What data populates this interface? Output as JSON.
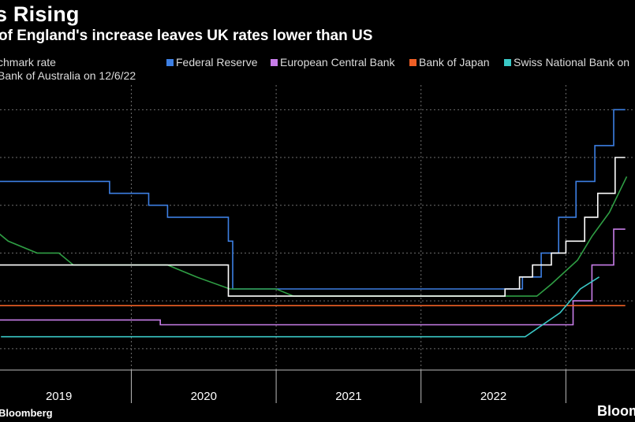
{
  "title": "s Rising",
  "subtitle": "of England's increase leaves UK rates lower than US",
  "legend": {
    "row1": [
      {
        "label": "chmark rate",
        "color": "#ffffff",
        "swatch": false
      },
      {
        "label": "Federal Reserve",
        "color": "#3d7fe3",
        "swatch": true
      },
      {
        "label": "European Central Bank",
        "color": "#c77de8",
        "swatch": true
      },
      {
        "label": "Bank of Japan",
        "color": "#ef5f25",
        "swatch": true
      },
      {
        "label": "Swiss National Bank on",
        "color": "#3ac8c6",
        "swatch": true
      }
    ],
    "row2": [
      {
        "label": "Bank of Australia on 12/6/22",
        "color": "#2f9e44",
        "swatch": false
      }
    ]
  },
  "source": "Bloomberg",
  "brand": "Bloom",
  "chart_data": {
    "type": "line",
    "x_unit": "year",
    "xlim": [
      2018.55,
      2022.95
    ],
    "ylim": [
      -1.25,
      4.5
    ],
    "grid": {
      "horizontal": true,
      "vertical": true
    },
    "x_ticks": [
      {
        "label": "2019",
        "at": 2019.0
      },
      {
        "label": "2020",
        "at": 2020.0
      },
      {
        "label": "2021",
        "at": 2021.0
      },
      {
        "label": "2022",
        "at": 2022.0
      }
    ],
    "y_gridlines": [
      -1,
      0,
      1,
      2,
      3,
      4
    ],
    "series": [
      {
        "name": "Federal Reserve",
        "color": "#3d7fe3",
        "step": true,
        "points": [
          [
            2018.55,
            2.5
          ],
          [
            2019.35,
            2.25
          ],
          [
            2019.62,
            2.0
          ],
          [
            2019.75,
            1.75
          ],
          [
            2020.17,
            1.25
          ],
          [
            2020.2,
            0.25
          ],
          [
            2021.0,
            0.25
          ],
          [
            2021.95,
            0.25
          ],
          [
            2022.2,
            0.5
          ],
          [
            2022.33,
            1.0
          ],
          [
            2022.45,
            1.75
          ],
          [
            2022.57,
            2.5
          ],
          [
            2022.7,
            3.25
          ],
          [
            2022.83,
            4.0
          ],
          [
            2022.91,
            4.0
          ]
        ]
      },
      {
        "name": "European Central Bank",
        "color": "#c77de8",
        "step": true,
        "points": [
          [
            2018.55,
            -0.4
          ],
          [
            2019.7,
            -0.5
          ],
          [
            2022.05,
            -0.5
          ],
          [
            2022.55,
            0.0
          ],
          [
            2022.68,
            0.75
          ],
          [
            2022.83,
            1.5
          ],
          [
            2022.91,
            1.5
          ]
        ]
      },
      {
        "name": "Bank of Japan",
        "color": "#ef5f25",
        "step": true,
        "points": [
          [
            2018.55,
            -0.1
          ],
          [
            2022.91,
            -0.1
          ]
        ]
      },
      {
        "name": "Swiss National Bank",
        "color": "#3ac8c6",
        "step": false,
        "points": [
          [
            2018.6,
            -0.75
          ],
          [
            2022.22,
            -0.75
          ],
          [
            2022.46,
            -0.25
          ],
          [
            2022.6,
            0.25
          ],
          [
            2022.73,
            0.5
          ]
        ]
      },
      {
        "name": "Reserve Bank of Australia",
        "color": "#2f9e44",
        "step": false,
        "points": [
          [
            2018.55,
            1.5
          ],
          [
            2018.65,
            1.25
          ],
          [
            2018.85,
            1.0
          ],
          [
            2019.0,
            1.0
          ],
          [
            2019.1,
            0.75
          ],
          [
            2019.75,
            0.75
          ],
          [
            2019.95,
            0.5
          ],
          [
            2020.18,
            0.25
          ],
          [
            2020.5,
            0.25
          ],
          [
            2020.62,
            0.1
          ],
          [
            2021.95,
            0.1
          ],
          [
            2022.3,
            0.1
          ],
          [
            2022.4,
            0.35
          ],
          [
            2022.58,
            0.85
          ],
          [
            2022.68,
            1.35
          ],
          [
            2022.8,
            1.85
          ],
          [
            2022.92,
            2.6
          ]
        ]
      },
      {
        "name": "Benchmark rate",
        "color": "#ffffff",
        "step": true,
        "points": [
          [
            2018.55,
            0.75
          ],
          [
            2020.17,
            0.1
          ],
          [
            2021.95,
            0.1
          ],
          [
            2022.08,
            0.25
          ],
          [
            2022.18,
            0.5
          ],
          [
            2022.27,
            0.75
          ],
          [
            2022.4,
            1.0
          ],
          [
            2022.5,
            1.25
          ],
          [
            2022.63,
            1.75
          ],
          [
            2022.72,
            2.25
          ],
          [
            2022.84,
            3.0
          ],
          [
            2022.91,
            3.0
          ]
        ]
      }
    ]
  }
}
